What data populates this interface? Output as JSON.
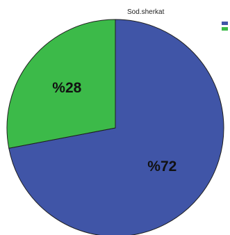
{
  "chart_data": {
    "type": "pie",
    "title": "Sod.sherkat",
    "slices": [
      {
        "label": "%72",
        "value": 72,
        "color": "#4055a7"
      },
      {
        "label": "%28",
        "value": 28,
        "color": "#3cba49"
      }
    ],
    "start_angle_deg": 0,
    "direction": "clockwise",
    "legend_position": "top-right",
    "legend_entries": [
      {
        "name": "",
        "color": "#4055a7"
      },
      {
        "name": "",
        "color": "#3cba49"
      }
    ],
    "stroke_color": "#1f1f1f"
  }
}
